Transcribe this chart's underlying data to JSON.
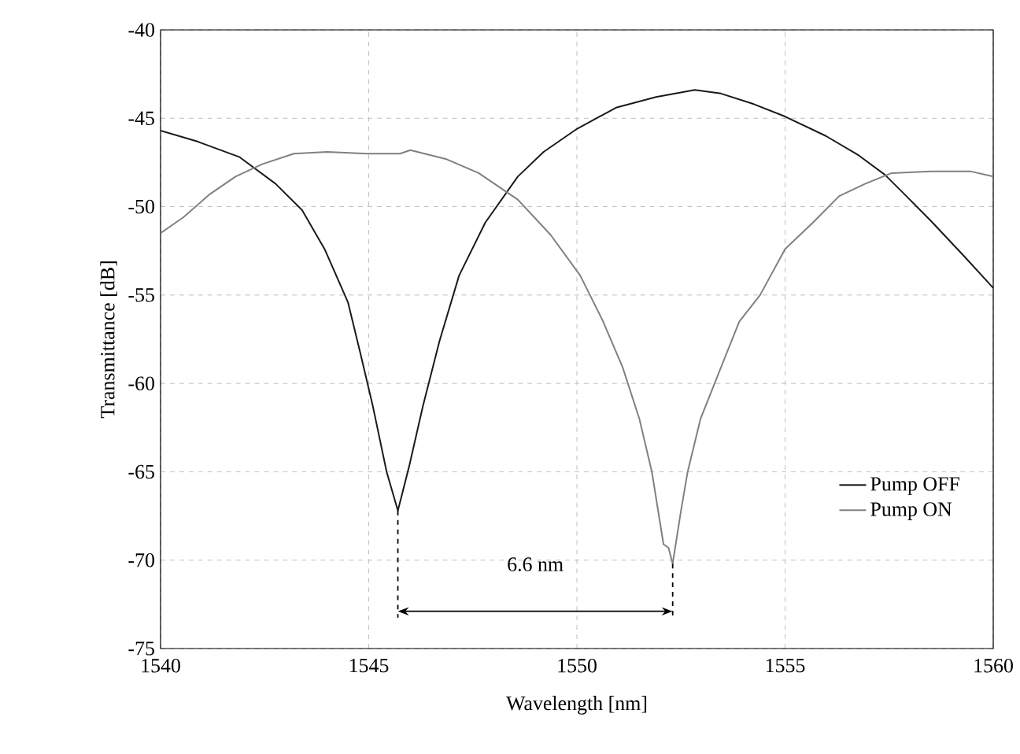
{
  "chart_data": {
    "type": "line",
    "xlabel": "Wavelength [nm]",
    "ylabel": "Transmittance [dB]",
    "xlim": [
      1540,
      1560
    ],
    "xticks": [
      1540,
      1545,
      1550,
      1555,
      1560
    ],
    "ylim": [
      -75,
      -40
    ],
    "yticks": [
      -75,
      -70,
      -65,
      -60,
      -55,
      -50,
      -45,
      -40
    ],
    "grid": true,
    "legend": "right",
    "line_style": "solid",
    "marker": "none",
    "annotations": [
      "6.6 nm"
    ],
    "series": [
      {
        "name": "Pump OFF",
        "color": "#1a1a1a",
        "x": [
          1540,
          1540.87,
          1541.9,
          1542.76,
          1543.4,
          1543.94,
          1544.5,
          1544.8,
          1545.1,
          1545.43,
          1545.7,
          1545.98,
          1546.3,
          1546.7,
          1547.17,
          1547.8,
          1548.58,
          1549.2,
          1550.0,
          1550.94,
          1551.9,
          1552.83,
          1553.46,
          1554.25,
          1555.0,
          1555.98,
          1556.77,
          1557.4,
          1557.87,
          1558.5,
          1559.3,
          1560
        ],
        "values": [
          -45.7,
          -46.3,
          -47.2,
          -48.7,
          -50.2,
          -52.4,
          -55.4,
          -58.3,
          -61.3,
          -65.0,
          -67.2,
          -64.6,
          -61.3,
          -57.6,
          -53.9,
          -50.9,
          -48.3,
          -46.9,
          -45.6,
          -44.4,
          -43.8,
          -43.4,
          -43.6,
          -44.2,
          -44.9,
          -46.0,
          -47.1,
          -48.2,
          -49.3,
          -50.8,
          -52.8,
          -54.6
        ]
      },
      {
        "name": "Pump ON",
        "color": "#808080",
        "x": [
          1540,
          1540.55,
          1541.18,
          1541.8,
          1542.44,
          1543.2,
          1544.0,
          1544.96,
          1545.75,
          1546.0,
          1546.85,
          1547.64,
          1548.58,
          1549.37,
          1550.08,
          1550.63,
          1551.1,
          1551.5,
          1551.8,
          1552.08,
          1552.2,
          1552.3,
          1552.5,
          1552.66,
          1552.97,
          1553.46,
          1553.9,
          1554.4,
          1555.0,
          1555.67,
          1556.3,
          1556.93,
          1557.56,
          1558.5,
          1559.45,
          1560
        ],
        "values": [
          -51.5,
          -50.6,
          -49.3,
          -48.3,
          -47.6,
          -47.0,
          -46.9,
          -47.0,
          -47.0,
          -46.8,
          -47.3,
          -48.1,
          -49.6,
          -51.6,
          -53.9,
          -56.5,
          -59.1,
          -62.0,
          -65.0,
          -69.1,
          -69.3,
          -70.2,
          -67.2,
          -65.0,
          -62.0,
          -59.1,
          -56.5,
          -55.0,
          -52.4,
          -50.9,
          -49.4,
          -48.7,
          -48.1,
          -48.0,
          -48.0,
          -48.3
        ]
      }
    ]
  }
}
